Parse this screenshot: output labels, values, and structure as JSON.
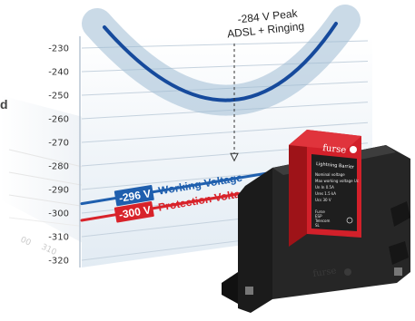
{
  "colors": {
    "working": "#1f5fae",
    "protection": "#d8232a",
    "curve": "#164a9c",
    "band": "#9fbcd4"
  },
  "ghost_text": {
    "left_fragment": "d",
    "tick_a": "00",
    "tick_b": "310"
  },
  "chart_data": {
    "type": "line",
    "title": "",
    "xlabel": "",
    "ylabel": "",
    "ylim": [
      -320,
      -230
    ],
    "yticks": [
      -230,
      -240,
      -250,
      -260,
      -270,
      -280,
      -290,
      -300,
      -310,
      -320
    ],
    "yticks_labels": [
      "-230",
      "-240",
      "-250",
      "-260",
      "-270",
      "-280",
      "-290",
      "-300",
      "-310",
      "-320"
    ],
    "curve_min": -256,
    "peak_annotation": {
      "line1": "-284 V Peak",
      "line2": "ADSL + Ringing",
      "value": -284
    },
    "working_voltage": {
      "value_label": "-296 V",
      "label": "Working Voltage",
      "value": -296,
      "icon": "working-voltage-line"
    },
    "protection_voltage": {
      "value_label": "-300 V",
      "label": "Protection Voltage",
      "value": -300,
      "icon": "protection-voltage-line"
    }
  },
  "device": {
    "icon": "surge-protector-device",
    "brand_top": "furse",
    "product": "Lightning Barrier",
    "brand_bottom": "furse",
    "spec_lines": [
      "Nominal voltage",
      "Max working voltage Uᴄ",
      "Un  In 0.5A",
      "Ures 1.5 kA",
      "Ucs 30 V"
    ],
    "label_lines": [
      "Furse",
      "ESP",
      "Telecom",
      "SL"
    ]
  }
}
